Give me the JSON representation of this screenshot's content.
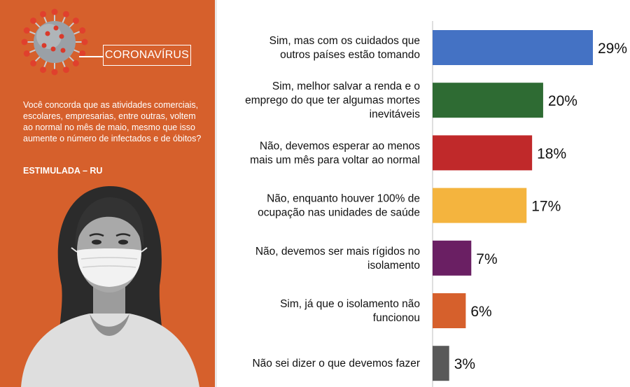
{
  "badge": "CORONAVÍRUS",
  "question": "Você concorda que as atividades comerciais, escolares, empresarias, entre outras, voltem ao normal no mês de maio, mesmo que isso aumente o número de infectados e de óbitos?",
  "method": "ESTIMULADA – RU",
  "icons": {
    "virus": "coronavirus-icon",
    "person": "woman-with-mask-illustration"
  },
  "chart_data": {
    "type": "bar",
    "orientation": "horizontal",
    "categories": [
      [
        "Sim, mas com os cuidados que",
        "outros países estão tomando"
      ],
      [
        "Sim, melhor salvar a renda e o",
        "emprego do que ter algumas mortes",
        "inevitáveis"
      ],
      [
        "Não, devemos esperar ao menos",
        "mais um mês para voltar ao normal"
      ],
      [
        "Não, enquanto houver 100% de",
        "ocupação nas unidades de saúde"
      ],
      [
        "Não, devemos ser mais rígidos no",
        "isolamento"
      ],
      [
        "Sim, já que o isolamento não",
        "funcionou"
      ],
      [
        "Não sei dizer o que devemos fazer"
      ]
    ],
    "values": [
      29,
      20,
      18,
      17,
      7,
      6,
      3
    ],
    "value_labels": [
      "29%",
      "20%",
      "18%",
      "17%",
      "7%",
      "6%",
      "3%"
    ],
    "colors": [
      "#4472c4",
      "#2e6b33",
      "#c0292a",
      "#f4b43e",
      "#6a1f63",
      "#d6602c",
      "#595959"
    ],
    "xlim": [
      0,
      29
    ],
    "grid": false,
    "legend": "none"
  }
}
